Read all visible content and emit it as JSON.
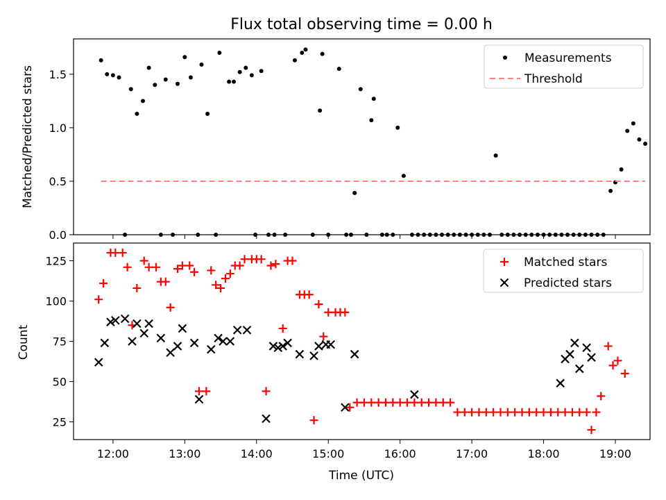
{
  "chart_data": [
    {
      "type": "scatter",
      "title": "Flux total observing time = 0.00 h",
      "xlabel": "",
      "ylabel": "Matched/Predicted stars",
      "xlim": [
        "11:27",
        "19:29"
      ],
      "ylim": [
        0,
        1.83
      ],
      "yticks": [
        0.0,
        0.5,
        1.0,
        1.5
      ],
      "ytick_labels": [
        "0.0",
        "0.5",
        "1.0",
        "1.5"
      ],
      "legend": "top-right",
      "series": [
        {
          "name": "Measurements",
          "color": "#000000",
          "marker": "dot",
          "points": [
            [
              "11:50",
              1.63
            ],
            [
              "11:55",
              1.5
            ],
            [
              "12:00",
              1.49
            ],
            [
              "12:05",
              1.47
            ],
            [
              "12:10",
              0.0
            ],
            [
              "12:15",
              1.36
            ],
            [
              "12:20",
              1.13
            ],
            [
              "12:25",
              1.25
            ],
            [
              "12:30",
              1.56
            ],
            [
              "12:35",
              1.4
            ],
            [
              "12:40",
              0.0
            ],
            [
              "12:44",
              1.45
            ],
            [
              "12:50",
              0.0
            ],
            [
              "12:54",
              1.41
            ],
            [
              "13:00",
              1.66
            ],
            [
              "13:05",
              1.47
            ],
            [
              "13:11",
              0.0
            ],
            [
              "13:14",
              1.59
            ],
            [
              "13:19",
              1.13
            ],
            [
              "13:26",
              0.0
            ],
            [
              "13:29",
              1.7
            ],
            [
              "13:37",
              1.43
            ],
            [
              "13:41",
              1.43
            ],
            [
              "13:46",
              1.52
            ],
            [
              "13:51",
              1.56
            ],
            [
              "13:56",
              1.49
            ],
            [
              "13:59",
              0.0
            ],
            [
              "14:04",
              1.53
            ],
            [
              "14:10",
              0.0
            ],
            [
              "14:15",
              0.0
            ],
            [
              "14:24",
              0.0
            ],
            [
              "14:32",
              1.63
            ],
            [
              "14:38",
              1.7
            ],
            [
              "14:41",
              1.73
            ],
            [
              "14:47",
              0.0
            ],
            [
              "14:53",
              1.16
            ],
            [
              "14:55",
              1.69
            ],
            [
              "15:00",
              0.0
            ],
            [
              "15:09",
              1.55
            ],
            [
              "15:15",
              0.0
            ],
            [
              "15:19",
              0.0
            ],
            [
              "15:22",
              0.39
            ],
            [
              "15:27",
              1.36
            ],
            [
              "15:32",
              0.0
            ],
            [
              "15:36",
              1.07
            ],
            [
              "15:38",
              1.27
            ],
            [
              "15:45",
              0.0
            ],
            [
              "15:49",
              0.0
            ],
            [
              "15:54",
              0.0
            ],
            [
              "15:58",
              1.0
            ],
            [
              "16:03",
              0.55
            ],
            [
              "16:10",
              0.0
            ],
            [
              "16:15",
              0.0
            ],
            [
              "16:20",
              0.0
            ],
            [
              "16:25",
              0.0
            ],
            [
              "16:30",
              0.0
            ],
            [
              "16:35",
              0.0
            ],
            [
              "16:40",
              0.0
            ],
            [
              "16:45",
              0.0
            ],
            [
              "16:50",
              0.0
            ],
            [
              "16:55",
              0.0
            ],
            [
              "17:00",
              0.0
            ],
            [
              "17:05",
              0.0
            ],
            [
              "17:10",
              0.0
            ],
            [
              "17:15",
              0.0
            ],
            [
              "17:20",
              0.74
            ],
            [
              "17:25",
              0.0
            ],
            [
              "17:30",
              0.0
            ],
            [
              "17:35",
              0.0
            ],
            [
              "17:40",
              0.0
            ],
            [
              "17:45",
              0.0
            ],
            [
              "17:50",
              0.0
            ],
            [
              "17:55",
              0.0
            ],
            [
              "18:00",
              0.0
            ],
            [
              "18:05",
              0.0
            ],
            [
              "18:10",
              0.0
            ],
            [
              "18:15",
              0.0
            ],
            [
              "18:20",
              0.0
            ],
            [
              "18:25",
              0.0
            ],
            [
              "18:30",
              0.0
            ],
            [
              "18:35",
              0.0
            ],
            [
              "18:40",
              0.0
            ],
            [
              "18:45",
              0.0
            ],
            [
              "18:50",
              0.0
            ],
            [
              "18:56",
              0.41
            ],
            [
              "19:00",
              0.49
            ],
            [
              "19:05",
              0.61
            ],
            [
              "19:10",
              0.97
            ],
            [
              "19:15",
              1.04
            ],
            [
              "19:20",
              0.89
            ],
            [
              "19:25",
              0.85
            ]
          ]
        },
        {
          "name": "Threshold",
          "color": "#ff7f7f",
          "marker": "dashed-line",
          "points": [
            [
              "11:50",
              0.5
            ],
            [
              "19:25",
              0.5
            ]
          ]
        }
      ]
    },
    {
      "type": "scatter",
      "title": "",
      "xlabel": "Time (UTC)",
      "ylabel": "Count",
      "xlim": [
        "11:27",
        "19:29"
      ],
      "ylim": [
        14,
        136
      ],
      "xticks": [
        "12:00",
        "13:00",
        "14:00",
        "15:00",
        "16:00",
        "17:00",
        "18:00",
        "19:00"
      ],
      "yticks": [
        25,
        50,
        75,
        100,
        125
      ],
      "ytick_labels": [
        "25",
        "50",
        "75",
        "100",
        "125"
      ],
      "legend": "top-right",
      "series": [
        {
          "name": "Matched stars",
          "color": "#ff0000",
          "marker": "plus",
          "points": [
            [
              "11:48",
              101
            ],
            [
              "11:52",
              111
            ],
            [
              "11:58",
              130
            ],
            [
              "12:02",
              130
            ],
            [
              "12:08",
              130
            ],
            [
              "12:12",
              121
            ],
            [
              "12:16",
              85
            ],
            [
              "12:20",
              108
            ],
            [
              "12:26",
              125
            ],
            [
              "12:30",
              121
            ],
            [
              "12:36",
              121
            ],
            [
              "12:40",
              112
            ],
            [
              "12:44",
              112
            ],
            [
              "12:48",
              96
            ],
            [
              "12:54",
              120
            ],
            [
              "12:58",
              122
            ],
            [
              "13:04",
              122
            ],
            [
              "13:08",
              118
            ],
            [
              "13:12",
              44
            ],
            [
              "13:18",
              44
            ],
            [
              "13:22",
              119
            ],
            [
              "13:26",
              110
            ],
            [
              "13:30",
              108
            ],
            [
              "13:34",
              114
            ],
            [
              "13:38",
              117
            ],
            [
              "13:42",
              122
            ],
            [
              "13:46",
              122
            ],
            [
              "13:50",
              126
            ],
            [
              "13:56",
              126
            ],
            [
              "14:00",
              126
            ],
            [
              "14:04",
              126
            ],
            [
              "14:08",
              44
            ],
            [
              "14:12",
              122
            ],
            [
              "14:16",
              123
            ],
            [
              "14:22",
              83
            ],
            [
              "14:26",
              125
            ],
            [
              "14:30",
              125
            ],
            [
              "14:36",
              104
            ],
            [
              "14:40",
              104
            ],
            [
              "14:44",
              104
            ],
            [
              "14:48",
              26
            ],
            [
              "14:52",
              98
            ],
            [
              "14:56",
              78
            ],
            [
              "15:00",
              93
            ],
            [
              "15:06",
              93
            ],
            [
              "15:10",
              93
            ],
            [
              "15:14",
              93
            ],
            [
              "15:18",
              34
            ],
            [
              "15:24",
              37
            ],
            [
              "15:30",
              37
            ],
            [
              "15:36",
              37
            ],
            [
              "15:42",
              37
            ],
            [
              "15:48",
              37
            ],
            [
              "15:54",
              37
            ],
            [
              "16:00",
              37
            ],
            [
              "16:06",
              37
            ],
            [
              "16:12",
              37
            ],
            [
              "16:18",
              37
            ],
            [
              "16:24",
              37
            ],
            [
              "16:30",
              37
            ],
            [
              "16:36",
              37
            ],
            [
              "16:42",
              37
            ],
            [
              "16:48",
              31
            ],
            [
              "16:54",
              31
            ],
            [
              "17:00",
              31
            ],
            [
              "17:06",
              31
            ],
            [
              "17:12",
              31
            ],
            [
              "17:18",
              31
            ],
            [
              "17:24",
              31
            ],
            [
              "17:30",
              31
            ],
            [
              "17:36",
              31
            ],
            [
              "17:42",
              31
            ],
            [
              "17:48",
              31
            ],
            [
              "17:54",
              31
            ],
            [
              "18:00",
              31
            ],
            [
              "18:06",
              31
            ],
            [
              "18:12",
              31
            ],
            [
              "18:18",
              31
            ],
            [
              "18:24",
              31
            ],
            [
              "18:30",
              31
            ],
            [
              "18:36",
              31
            ],
            [
              "18:40",
              20
            ],
            [
              "18:44",
              31
            ],
            [
              "18:48",
              41
            ],
            [
              "18:54",
              72
            ],
            [
              "18:58",
              60
            ],
            [
              "19:02",
              63
            ],
            [
              "19:08",
              55
            ]
          ]
        },
        {
          "name": "Predicted stars",
          "color": "#000000",
          "marker": "x",
          "points": [
            [
              "11:48",
              62
            ],
            [
              "11:53",
              74
            ],
            [
              "11:58",
              87
            ],
            [
              "12:02",
              88
            ],
            [
              "12:10",
              89
            ],
            [
              "12:16",
              75
            ],
            [
              "12:20",
              86
            ],
            [
              "12:26",
              80
            ],
            [
              "12:30",
              86
            ],
            [
              "12:40",
              77
            ],
            [
              "12:48",
              68
            ],
            [
              "12:54",
              72
            ],
            [
              "12:58",
              83
            ],
            [
              "13:08",
              74
            ],
            [
              "13:12",
              39
            ],
            [
              "13:22",
              70
            ],
            [
              "13:28",
              77
            ],
            [
              "13:32",
              75
            ],
            [
              "13:38",
              75
            ],
            [
              "13:44",
              82
            ],
            [
              "13:52",
              82
            ],
            [
              "14:08",
              27
            ],
            [
              "14:14",
              72
            ],
            [
              "14:18",
              71
            ],
            [
              "14:22",
              72
            ],
            [
              "14:26",
              74
            ],
            [
              "14:36",
              67
            ],
            [
              "14:48",
              66
            ],
            [
              "14:52",
              72
            ],
            [
              "14:58",
              73
            ],
            [
              "15:02",
              73
            ],
            [
              "15:14",
              34
            ],
            [
              "15:22",
              67
            ],
            [
              "16:12",
              42
            ],
            [
              "18:14",
              49
            ],
            [
              "18:18",
              64
            ],
            [
              "18:22",
              67
            ],
            [
              "18:26",
              74
            ],
            [
              "18:30",
              58
            ],
            [
              "18:36",
              71
            ],
            [
              "18:40",
              65
            ]
          ]
        }
      ]
    }
  ]
}
